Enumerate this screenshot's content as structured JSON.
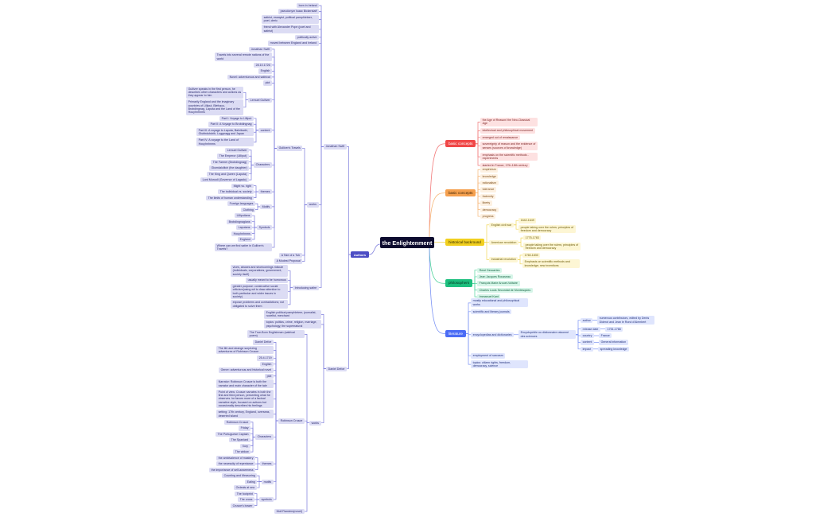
{
  "title": "the Enlightenment",
  "themes": {
    "red": {
      "main": "#f04848",
      "light": "#fde1e1",
      "text": "#7a1f1f",
      "label": "#ffffff",
      "line": "#f27b7b"
    },
    "orange": {
      "main": "#f5a04e",
      "light": "#fdf1e2",
      "text": "#7a4a14",
      "label": "#3a2206",
      "line": "#f7b87a"
    },
    "yellow": {
      "main": "#f1cf1e",
      "light": "#fdf6d4",
      "text": "#6b5a06",
      "label": "#2e2604",
      "line": "#f0d85a"
    },
    "green": {
      "main": "#1dbf7e",
      "light": "#d6f5e8",
      "text": "#11603f",
      "label": "#06301f",
      "line": "#4fd39c"
    },
    "blue": {
      "main": "#4b6cf5",
      "light": "#dfe5fd",
      "text": "#22307a",
      "label": "#ffffff",
      "line": "#7b93f5"
    },
    "indigo": {
      "main": "#4c4dc4",
      "light": "#dcdcf4",
      "text": "#2a2a6e",
      "label": "#ffffff",
      "line": "#7c7cdc"
    }
  },
  "right": [
    {
      "text": "basic concepts",
      "theme": "red",
      "children": [
        {
          "text": "the Age of Reason/ the Neo-Classical Age"
        },
        {
          "text": "intellectual and philosophical movement"
        },
        {
          "text": "emerged out of renaissance"
        },
        {
          "text": "sovereignty of reason and the evidence of senses (sources of knowledge)"
        },
        {
          "text": "emphasis on the scientific methods - experiments"
        },
        {
          "text": "started in France, 17th-18th century"
        }
      ]
    },
    {
      "text": "basic concepts",
      "theme": "orange",
      "children": [
        {
          "text": "empiricism"
        },
        {
          "text": "knowledge"
        },
        {
          "text": "rationalism"
        },
        {
          "text": "tolerance"
        },
        {
          "text": "fraternity"
        },
        {
          "text": "liberty"
        },
        {
          "text": "democracy"
        },
        {
          "text": "progress"
        }
      ]
    },
    {
      "text": "historical backround",
      "theme": "yellow",
      "children": [
        {
          "text": "English civil war",
          "children": [
            {
              "text": "1642-1649"
            },
            {
              "text": "people taking over the rulers; principles of freedom and democracy"
            }
          ]
        },
        {
          "text": "American revolution",
          "children": [
            {
              "text": "1775-1783"
            },
            {
              "text": "people taking over the rulers; principles of freedom and democracy"
            }
          ]
        },
        {
          "text": "Industrial revolution",
          "children": [
            {
              "text": "1760-1830"
            },
            {
              "text": "Emphasis on scientific methods and knowledge; new inventions"
            }
          ]
        }
      ]
    },
    {
      "text": "philosophers",
      "theme": "green",
      "children": [
        {
          "text": "René Descartes"
        },
        {
          "text": "Jean Jacques Rousseau"
        },
        {
          "text": "François Marie Arouet-Voltaire"
        },
        {
          "text": "Charles Louis Secondat de Montesquieu"
        },
        {
          "text": "Immanuel Kant"
        }
      ]
    },
    {
      "text": "literature",
      "theme": "blue",
      "children": [
        {
          "text": "mostly educational and philosophical works"
        },
        {
          "text": "scientific and literary journals"
        },
        {
          "text": "encyclopedias and dictionaries",
          "children": [
            {
              "text": "Encyclopédie ou dictionnaire raisonné des sciences",
              "children": [
                {
                  "text": "author",
                  "children": [
                    {
                      "text": "numerous contributors, edited by Denis Diderot and Jean le Rond d'Alembert"
                    }
                  ]
                },
                {
                  "text": "release date",
                  "children": [
                    {
                      "text": "1751-1766"
                    }
                  ]
                },
                {
                  "text": "country",
                  "children": [
                    {
                      "text": "France"
                    }
                  ]
                },
                {
                  "text": "content",
                  "children": [
                    {
                      "text": "General information"
                    }
                  ]
                },
                {
                  "text": "impact",
                  "children": [
                    {
                      "text": "spreading knowledge"
                    }
                  ]
                }
              ]
            }
          ]
        },
        {
          "text": "employment of sarcasm"
        },
        {
          "text": "topics: citizen rights, freedom, democracy, science"
        }
      ]
    }
  ],
  "left": {
    "text": "Authors",
    "theme": "indigo",
    "children": [
      {
        "text": "Jonathan Swift",
        "children": [
          {
            "text": "born in Ireland"
          },
          {
            "text": "pseudonym Isaac Bickerstaff"
          },
          {
            "text": "satirist, essayist, political pamphleteer, poet, cleric"
          },
          {
            "text": "friend with Alexander Pope (poet and satirist)"
          },
          {
            "text": "politically active"
          },
          {
            "text": "moved between England and Ireland"
          },
          {
            "text": "works",
            "children": [
              {
                "text": "Gulliver's Travels",
                "children": [
                  {
                    "text": "Jonathan Swift"
                  },
                  {
                    "text": "Travels into several remote nations of the world"
                  },
                  {
                    "text": "28.10.1726"
                  },
                  {
                    "text": "English"
                  },
                  {
                    "text": "Novel: adventurous and satirical"
                  },
                  {
                    "text": "plot"
                  },
                  {
                    "text": "Lemuel Gulliver",
                    "children": [
                      {
                        "text": "Gulliver speaks in the first person, he describes other characters and actions as they appear to him"
                      },
                      {
                        "text": "Primarily England and the imaginary countries of Lilliput, Blefuscu, Brobdingnag, Laputa and the Land of the Houyhnhnms"
                      }
                    ]
                  },
                  {
                    "text": "content",
                    "children": [
                      {
                        "text": "Part I: Voyage to Lilliput"
                      },
                      {
                        "text": "Part II: A Voyage to Brobdingnag"
                      },
                      {
                        "text": "Part III: A voyage to Laputa, Balnibarbi, Glubbdubdrib, Luggnagg and Japan"
                      },
                      {
                        "text": "Part IV: A voyage to the Land of Houyhnhnms"
                      }
                    ]
                  },
                  {
                    "text": "Characters",
                    "children": [
                      {
                        "text": "Lemuel Gulliver"
                      },
                      {
                        "text": "The Emperor (Lilliput)"
                      },
                      {
                        "text": "The Farmer (Brobdingnag)"
                      },
                      {
                        "text": "Glumdalclitch (the daughter)"
                      },
                      {
                        "text": "The King and Queen (Laputa)"
                      },
                      {
                        "text": "Lord Munodi (Governor of Lagado)"
                      }
                    ]
                  },
                  {
                    "text": "themes",
                    "children": [
                      {
                        "text": "Might vs. right"
                      },
                      {
                        "text": "The individual vs. society"
                      },
                      {
                        "text": "The limits of human understanding"
                      }
                    ]
                  },
                  {
                    "text": "Motifs",
                    "children": [
                      {
                        "text": "Foreign languages"
                      },
                      {
                        "text": "Clothing"
                      }
                    ]
                  },
                  {
                    "text": "Symbols",
                    "children": [
                      {
                        "text": "Lilliputians"
                      },
                      {
                        "text": "Brobdingnagians"
                      },
                      {
                        "text": "Laputans"
                      },
                      {
                        "text": "Houyhnhnms"
                      },
                      {
                        "text": "England"
                      }
                    ]
                  },
                  {
                    "text": "Where can we find satire in Gulliver's Travels?"
                  }
                ]
              },
              {
                "text": "A Tale of a Tub"
              },
              {
                "text": "A Modest Proposal"
              }
            ]
          },
          {
            "text": "Introducing satire",
            "children": [
              {
                "text": "vices, abuses and shortcomings ridicule (individuals, corporations, government, society itself)"
              },
              {
                "text": "usually meant to be humorous"
              },
              {
                "text": "greater purpose: constructive social criticism(using wit to draw attention to both particular and wider issues in society)"
              },
              {
                "text": "expose problems and contradictions; not obligated to solve them"
              }
            ]
          }
        ]
      },
      {
        "text": "Daniel Defoe",
        "children": [
          {
            "text": "English political pamphleteer, journalist, novelist, merchant"
          },
          {
            "text": "topics: politics, crime, religion, marriage, psychology, the supernatural"
          },
          {
            "text": "works",
            "children": [
              {
                "text": "The True-Born Englishman (satirical poem)"
              },
              {
                "text": "Robinson Crusoe",
                "children": [
                  {
                    "text": "Daniel Defoe"
                  },
                  {
                    "text": "The life and strange surprizing adventures of Robinson Crusoe"
                  },
                  {
                    "text": "25.4.1719"
                  },
                  {
                    "text": "English"
                  },
                  {
                    "text": "Genre: adventurous and historical novel"
                  },
                  {
                    "text": "plot"
                  },
                  {
                    "text": "Narrator: Robinson Crusoe is both the narrator and main character of the tale"
                  },
                  {
                    "text": "Point of view: Crusoe narrates in both the first and third person, presenting what he observes. he favors more of a factual narrative style, focused on actions but occasionally describes his feelings"
                  },
                  {
                    "text": "setting: 17th century, England, overseas, deserted island"
                  },
                  {
                    "text": "Characters",
                    "children": [
                      {
                        "text": "Robinson Crusoe"
                      },
                      {
                        "text": "Friday"
                      },
                      {
                        "text": "The Portuguese Captain"
                      },
                      {
                        "text": "The Spaniard"
                      },
                      {
                        "text": "Xury"
                      },
                      {
                        "text": "The widow"
                      }
                    ]
                  },
                  {
                    "text": "themes",
                    "children": [
                      {
                        "text": "the ambivalence of mastery"
                      },
                      {
                        "text": "the necessity of repentance"
                      },
                      {
                        "text": "the importance of self-awareness"
                      }
                    ]
                  },
                  {
                    "text": "motifs",
                    "children": [
                      {
                        "text": "Counting and Measuring"
                      },
                      {
                        "text": "Eating"
                      },
                      {
                        "text": "Ordeals at sea"
                      }
                    ]
                  },
                  {
                    "text": "symbols",
                    "children": [
                      {
                        "text": "The footprint"
                      },
                      {
                        "text": "The cross"
                      },
                      {
                        "text": "Crusoe's bower"
                      }
                    ]
                  }
                ]
              },
              {
                "text": "Moll Flanders(novel)"
              }
            ]
          }
        ]
      }
    ]
  }
}
